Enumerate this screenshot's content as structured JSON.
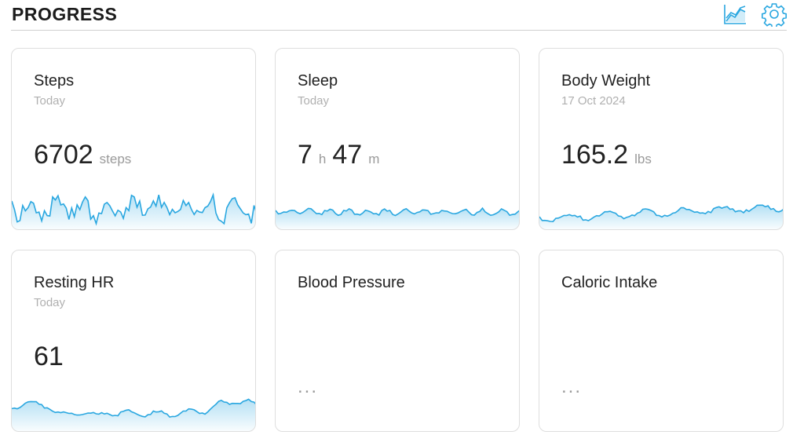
{
  "header": {
    "title": "PROGRESS"
  },
  "icons": {
    "trends": "chart-trend-icon",
    "settings": "gear-icon"
  },
  "accent_color": "#2aa7e0",
  "cards": {
    "steps": {
      "title": "Steps",
      "subtitle": "Today",
      "value": "6702",
      "unit": "steps"
    },
    "sleep": {
      "title": "Sleep",
      "subtitle": "Today",
      "hours": "7",
      "hours_unit": "h",
      "minutes": "47",
      "minutes_unit": "m"
    },
    "weight": {
      "title": "Body Weight",
      "subtitle": "17 Oct 2024",
      "value": "165.2",
      "unit": "lbs"
    },
    "hr": {
      "title": "Resting HR",
      "subtitle": "Today",
      "value": "61"
    },
    "bp": {
      "title": "Blood Pressure",
      "placeholder": "..."
    },
    "calories": {
      "title": "Caloric Intake",
      "placeholder": "..."
    }
  }
}
